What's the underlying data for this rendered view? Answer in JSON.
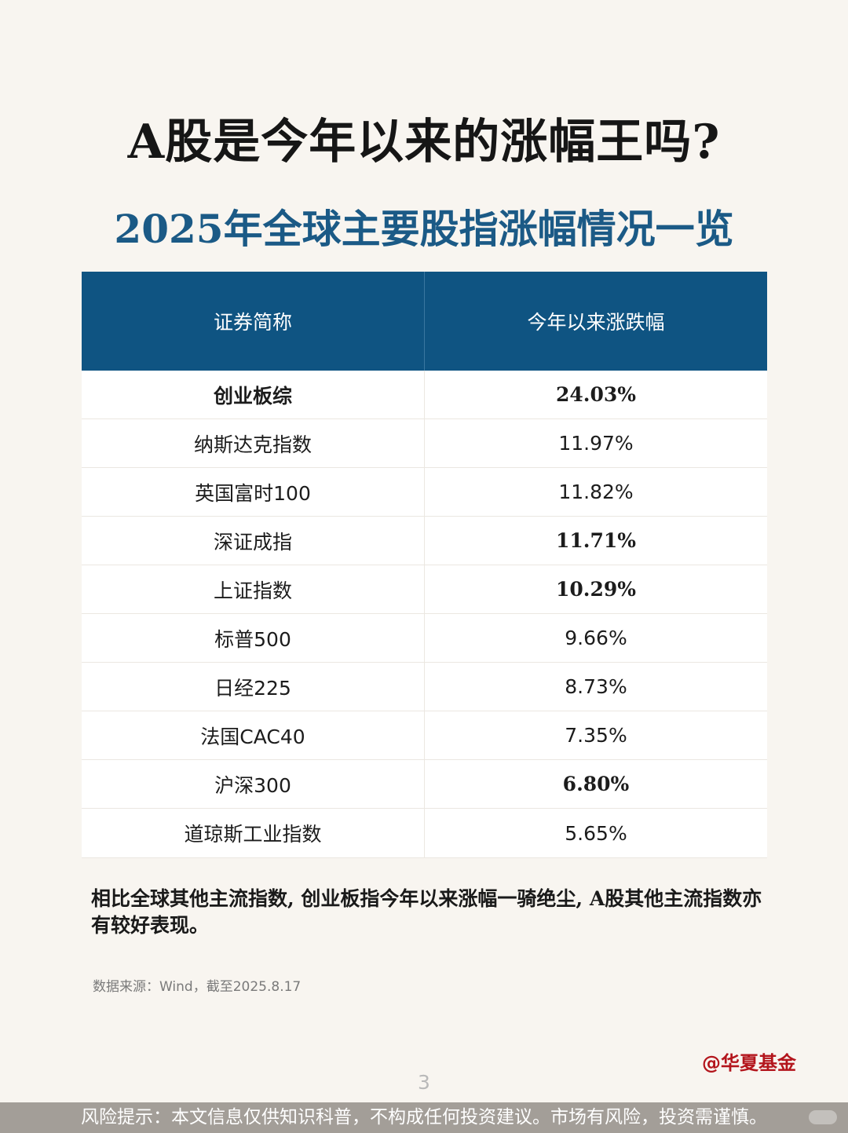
{
  "title": "A股是今年以来的涨幅王吗?",
  "subtitle": "2025年全球主要股指涨幅情况一览",
  "table": {
    "headers": [
      "证券简称",
      "今年以来涨跌幅"
    ],
    "rows": [
      {
        "name": "创业板综",
        "value": "24.03%"
      },
      {
        "name": "纳斯达克指数",
        "value": "11.97%"
      },
      {
        "name": "英国富时100",
        "value": "11.82%"
      },
      {
        "name": "深证成指",
        "value": "11.71%"
      },
      {
        "name": "上证指数",
        "value": "10.29%"
      },
      {
        "name": "标普500",
        "value": "9.66%"
      },
      {
        "name": "日经225",
        "value": "8.73%"
      },
      {
        "name": "法国CAC40",
        "value": "7.35%"
      },
      {
        "name": "沪深300",
        "value": "6.80%"
      },
      {
        "name": "道琼斯工业指数",
        "value": "5.65%"
      }
    ]
  },
  "note": "相比全球其他主流指数, 创业板指今年以来涨幅一骑绝尘, A股其他主流指数亦有较好表现。",
  "source": "数据来源：Wind，截至2025.8.17",
  "brand": "@华夏基金",
  "page_number": "3",
  "risk_notice": "风险提示：本文信息仅供知识科普，不构成任何投资建议。市场有风险，投资需谨慎。",
  "colors": {
    "header_bg": "#0f5482",
    "highlight_red": "#b3151c",
    "highlight_blue": "#1b5a86",
    "background": "#f8f5f0"
  }
}
